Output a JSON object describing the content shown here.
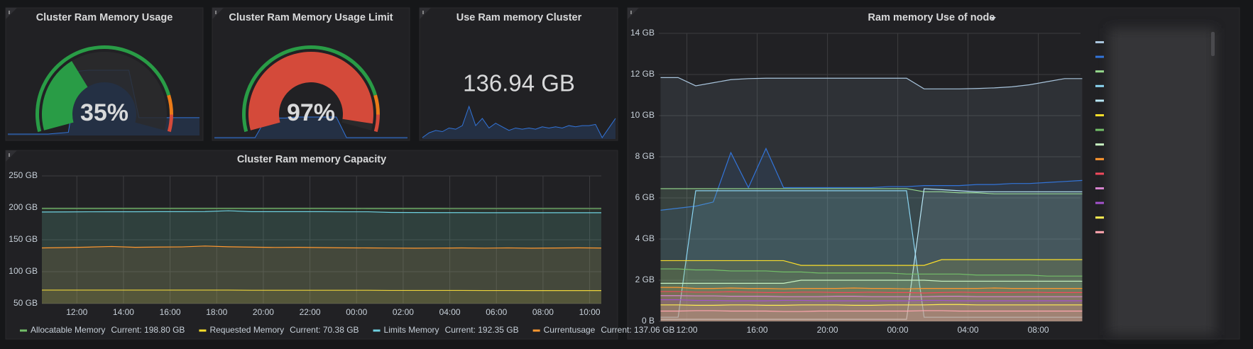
{
  "chart_data": [
    {
      "type": "gauge",
      "title": "Cluster Ram Memory Usage",
      "value": 35,
      "value_label": "35%",
      "range": [
        0,
        100
      ],
      "base_color": "#299c46",
      "thresholds": [
        {
          "value": 85,
          "color": "#eb7b18"
        },
        {
          "value": 93,
          "color": "#d44a3a"
        }
      ],
      "sparkline": [
        0.5,
        0.5,
        0.5,
        0.5,
        0.5,
        0.6,
        0.7,
        7.8,
        7.9,
        7.9,
        7.9,
        7.9,
        7.9,
        2.4,
        2.4,
        2.4,
        2.4,
        2.4,
        2.4,
        2.4
      ],
      "sparkline_color": "#3274d9"
    },
    {
      "type": "gauge",
      "title": "Cluster Ram Memory Usage Limit",
      "value": 97,
      "value_label": "97%",
      "range": [
        0,
        100
      ],
      "base_color": "#299c46",
      "thresholds": [
        {
          "value": 85,
          "color": "#eb7b18"
        },
        {
          "value": 93,
          "color": "#d44a3a"
        }
      ],
      "sparkline": [
        0.5,
        0.5,
        0.5,
        0.5,
        0.5,
        2.3,
        2.5,
        2.5,
        2.6,
        2.6,
        2.6,
        2.6,
        2.6,
        0.5,
        0.5,
        0.5,
        0.5,
        0.5,
        0.5,
        0.5
      ],
      "sparkline_color": "#3274d9"
    },
    {
      "type": "stat",
      "title": "Use Ram memory Cluster",
      "value": 136.94,
      "value_label": "136.94 GB",
      "sparkline": [
        1.0,
        1.4,
        1.6,
        1.5,
        1.8,
        1.7,
        2.0,
        3.6,
        2.0,
        2.6,
        1.8,
        2.2,
        1.9,
        1.6,
        1.8,
        1.7,
        1.8,
        1.7,
        1.9,
        1.8,
        1.9,
        1.8,
        2.0,
        1.9,
        2.0,
        2.0,
        2.1,
        1.0,
        1.8,
        2.6
      ],
      "sparkline_color": "#3274d9"
    },
    {
      "type": "line",
      "title": "Cluster Ram memory Capacity",
      "grid": true,
      "legend": "bottom",
      "x": [
        10.5,
        11.5,
        12.5,
        13.5,
        14.5,
        15.5,
        16.5,
        17.5,
        18.5,
        19.5,
        20.5,
        21.5,
        22.5,
        23.5,
        24.5,
        25.5,
        26.5,
        27.5,
        28.5,
        29.5,
        30.5,
        31.5,
        32.5,
        33.5,
        34.5
      ],
      "xlim": [
        10.5,
        34.5
      ],
      "xticks": [
        {
          "value": 12,
          "label": "12:00"
        },
        {
          "value": 14,
          "label": "14:00"
        },
        {
          "value": 16,
          "label": "16:00"
        },
        {
          "value": 18,
          "label": "18:00"
        },
        {
          "value": 20,
          "label": "20:00"
        },
        {
          "value": 22,
          "label": "22:00"
        },
        {
          "value": 24,
          "label": "00:00"
        },
        {
          "value": 26,
          "label": "02:00"
        },
        {
          "value": 28,
          "label": "04:00"
        },
        {
          "value": 30,
          "label": "06:00"
        },
        {
          "value": 32,
          "label": "08:00"
        },
        {
          "value": 34,
          "label": "10:00"
        }
      ],
      "ylim": [
        50,
        250
      ],
      "yticks": [
        {
          "value": 50,
          "label": "50 GB"
        },
        {
          "value": 100,
          "label": "100 GB"
        },
        {
          "value": 150,
          "label": "150 GB"
        },
        {
          "value": 200,
          "label": "200 GB"
        },
        {
          "value": 250,
          "label": "250 GB"
        }
      ],
      "series": [
        {
          "name": "Allocatable Memory",
          "current_label": "Current: 198.80 GB",
          "color": "#73bf69",
          "values": [
            199.0,
            199.0,
            199.0,
            199.0,
            199.0,
            199.0,
            199.0,
            199.0,
            199.0,
            199.0,
            199.0,
            199.0,
            199.0,
            199.0,
            198.9,
            198.9,
            198.9,
            198.9,
            198.8,
            198.8,
            198.8,
            198.8,
            198.8,
            198.8,
            198.8
          ]
        },
        {
          "name": "Requested Memory",
          "current_label": "Current: 70.38 GB",
          "color": "#fade2a",
          "values": [
            71.2,
            71.2,
            71.2,
            71.2,
            71.2,
            71.2,
            71.2,
            71.2,
            71.2,
            70.9,
            70.9,
            70.9,
            70.9,
            70.9,
            70.9,
            70.6,
            70.6,
            70.6,
            70.6,
            70.5,
            70.5,
            70.4,
            70.4,
            70.4,
            70.38
          ]
        },
        {
          "name": "Limits Memory",
          "current_label": "Current: 192.35 GB",
          "color": "#6ed0e0",
          "values": [
            193.5,
            193.6,
            193.8,
            193.9,
            193.9,
            194.0,
            194.0,
            194.2,
            195.5,
            194.0,
            194.0,
            194.0,
            194.0,
            193.8,
            193.8,
            192.8,
            192.6,
            192.5,
            192.5,
            192.4,
            192.4,
            192.4,
            192.35,
            192.35,
            192.35
          ]
        },
        {
          "name": "Currentusage",
          "current_label": "Current: 137.06 GB",
          "color": "#ff9830",
          "values": [
            137.2,
            137.8,
            138.5,
            139.5,
            138.2,
            138.6,
            138.8,
            140.2,
            139.0,
            138.5,
            138.0,
            138.2,
            137.8,
            137.4,
            137.2,
            137.0,
            136.8,
            137.0,
            137.2,
            136.9,
            137.3,
            136.8,
            137.1,
            137.4,
            137.06
          ]
        }
      ]
    },
    {
      "type": "line",
      "title": "Ram memory Use of node",
      "grid": true,
      "legend": "right",
      "x": [
        10.5,
        11.5,
        12.5,
        13.5,
        14.5,
        15.5,
        16.5,
        17.5,
        18.5,
        19.5,
        20.5,
        21.5,
        22.5,
        23.5,
        24.5,
        25.5,
        26.5,
        27.5,
        28.5,
        29.5,
        30.5,
        31.5,
        32.5,
        33.5,
        34.5
      ],
      "xlim": [
        10.4,
        34.4
      ],
      "xticks": [
        {
          "value": 12,
          "label": "12:00"
        },
        {
          "value": 16,
          "label": "16:00"
        },
        {
          "value": 20,
          "label": "20:00"
        },
        {
          "value": 24,
          "label": "00:00"
        },
        {
          "value": 28,
          "label": "04:00"
        },
        {
          "value": 32,
          "label": "08:00"
        }
      ],
      "ylim": [
        0,
        14
      ],
      "yticks": [
        {
          "value": 0,
          "label": "0 B"
        },
        {
          "value": 2,
          "label": "2 GB"
        },
        {
          "value": 4,
          "label": "4 GB"
        },
        {
          "value": 6,
          "label": "6 GB"
        },
        {
          "value": 8,
          "label": "8 GB"
        },
        {
          "value": 10,
          "label": "10 GB"
        },
        {
          "value": 12,
          "label": "12 GB"
        },
        {
          "value": 14,
          "label": "14 GB"
        }
      ],
      "series": [
        {
          "color": "#a8c4dc",
          "values": [
            11.85,
            11.85,
            11.45,
            11.6,
            11.75,
            11.8,
            11.82,
            11.82,
            11.82,
            11.82,
            11.82,
            11.82,
            11.82,
            11.82,
            11.82,
            11.3,
            11.3,
            11.3,
            11.32,
            11.35,
            11.4,
            11.5,
            11.65,
            11.8,
            11.8
          ]
        },
        {
          "color": "#3274d9",
          "values": [
            5.4,
            5.5,
            5.6,
            5.8,
            8.2,
            6.5,
            8.4,
            6.5,
            6.5,
            6.5,
            6.5,
            6.5,
            6.5,
            6.55,
            6.55,
            6.6,
            6.6,
            6.6,
            6.65,
            6.65,
            6.7,
            6.7,
            6.75,
            6.8,
            6.85
          ]
        },
        {
          "color": "#96d98d",
          "values": [
            6.45,
            6.45,
            6.45,
            6.45,
            6.45,
            6.45,
            6.45,
            6.45,
            6.45,
            6.45,
            6.45,
            6.45,
            6.45,
            6.45,
            6.45,
            6.3,
            6.3,
            6.25,
            6.25,
            6.2,
            6.2,
            6.2,
            6.2,
            6.2,
            6.2
          ]
        },
        {
          "color": "#8ad4f0",
          "values": [
            0.2,
            0.2,
            6.35,
            6.35,
            6.35,
            6.35,
            6.35,
            6.35,
            6.35,
            6.35,
            6.35,
            6.35,
            6.35,
            6.35,
            6.35,
            0.2,
            0.2,
            0.2,
            0.2,
            0.2,
            0.2,
            0.2,
            0.2,
            0.2,
            0.2
          ]
        },
        {
          "color": "#b8e6f5",
          "values": [
            0.1,
            0.1,
            0.1,
            0.1,
            0.1,
            0.1,
            0.1,
            0.1,
            0.1,
            0.1,
            0.1,
            0.1,
            0.1,
            0.1,
            0.1,
            6.45,
            6.4,
            6.35,
            6.3,
            6.3,
            6.3,
            6.3,
            6.3,
            6.3,
            6.3
          ]
        },
        {
          "color": "#fade2a",
          "values": [
            2.95,
            2.95,
            2.95,
            2.95,
            2.95,
            2.95,
            2.95,
            2.95,
            2.72,
            2.72,
            2.72,
            2.72,
            2.72,
            2.72,
            2.72,
            2.72,
            3.0,
            3.0,
            3.0,
            3.0,
            3.0,
            3.0,
            3.0,
            3.0,
            3.0
          ]
        },
        {
          "color": "#73bf69",
          "values": [
            2.55,
            2.55,
            2.5,
            2.5,
            2.45,
            2.45,
            2.45,
            2.4,
            2.4,
            2.35,
            2.35,
            2.35,
            2.35,
            2.35,
            2.3,
            2.3,
            2.3,
            2.3,
            2.25,
            2.25,
            2.25,
            2.25,
            2.2,
            2.2,
            2.2
          ]
        },
        {
          "color": "#c8f2c2",
          "values": [
            1.85,
            1.85,
            1.85,
            1.85,
            1.85,
            1.85,
            1.85,
            1.85,
            2.0,
            2.0,
            2.0,
            2.0,
            2.0,
            2.0,
            2.0,
            2.0,
            1.95,
            1.95,
            1.95,
            1.95,
            1.95,
            1.95,
            1.95,
            1.95,
            1.95
          ]
        },
        {
          "color": "#ff9830",
          "values": [
            1.65,
            1.65,
            1.6,
            1.6,
            1.62,
            1.6,
            1.6,
            1.58,
            1.6,
            1.6,
            1.6,
            1.62,
            1.6,
            1.6,
            1.58,
            1.6,
            1.6,
            1.6,
            1.6,
            1.62,
            1.6,
            1.6,
            1.6,
            1.6,
            1.6
          ]
        },
        {
          "color": "#f2495c",
          "values": [
            1.45,
            1.45,
            1.42,
            1.42,
            1.44,
            1.42,
            1.4,
            1.4,
            1.42,
            1.42,
            1.4,
            1.4,
            1.42,
            1.4,
            1.4,
            1.38,
            1.4,
            1.42,
            1.4,
            1.4,
            1.4,
            1.42,
            1.4,
            1.4,
            1.4
          ]
        },
        {
          "color": "#d683ce",
          "values": [
            1.25,
            1.25,
            1.24,
            1.24,
            1.22,
            1.22,
            1.22,
            1.2,
            1.2,
            1.2,
            1.22,
            1.22,
            1.2,
            1.2,
            1.2,
            1.2,
            1.22,
            1.22,
            1.2,
            1.2,
            1.2,
            1.2,
            1.2,
            1.2,
            1.2
          ]
        },
        {
          "color": "#a352cc",
          "values": [
            1.05,
            1.05,
            1.02,
            1.02,
            1.0,
            1.0,
            1.0,
            1.02,
            1.02,
            1.0,
            1.0,
            1.0,
            1.0,
            1.0,
            1.0,
            1.02,
            1.02,
            1.0,
            1.0,
            1.0,
            1.0,
            1.0,
            1.0,
            1.0,
            1.0
          ]
        },
        {
          "color": "#ffee52",
          "values": [
            0.8,
            0.8,
            0.78,
            0.78,
            0.8,
            0.8,
            0.78,
            0.78,
            0.8,
            0.8,
            0.8,
            0.78,
            0.78,
            0.8,
            0.8,
            0.8,
            0.82,
            0.82,
            0.8,
            0.8,
            0.8,
            0.8,
            0.8,
            0.8,
            0.8
          ]
        },
        {
          "color": "#ffa6b0",
          "values": [
            0.5,
            0.5,
            0.52,
            0.52,
            0.5,
            0.5,
            0.5,
            0.48,
            0.48,
            0.5,
            0.5,
            0.5,
            0.5,
            0.5,
            0.5,
            0.52,
            0.52,
            0.5,
            0.5,
            0.5,
            0.5,
            0.5,
            0.5,
            0.5,
            0.5
          ]
        }
      ]
    }
  ]
}
